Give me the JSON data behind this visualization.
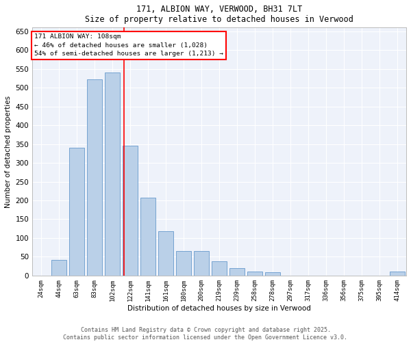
{
  "title": "171, ALBION WAY, VERWOOD, BH31 7LT",
  "subtitle": "Size of property relative to detached houses in Verwood",
  "xlabel": "Distribution of detached houses by size in Verwood",
  "ylabel": "Number of detached properties",
  "bar_labels": [
    "24sqm",
    "44sqm",
    "63sqm",
    "83sqm",
    "102sqm",
    "122sqm",
    "141sqm",
    "161sqm",
    "180sqm",
    "200sqm",
    "219sqm",
    "239sqm",
    "258sqm",
    "278sqm",
    "297sqm",
    "317sqm",
    "336sqm",
    "356sqm",
    "375sqm",
    "395sqm",
    "414sqm"
  ],
  "bar_values": [
    0,
    42,
    340,
    522,
    540,
    345,
    207,
    119,
    66,
    65,
    38,
    20,
    10,
    8,
    0,
    0,
    0,
    0,
    0,
    0,
    10
  ],
  "bar_color": "#bad0e8",
  "bar_edgecolor": "#6699cc",
  "ylim": [
    0,
    660
  ],
  "yticks": [
    0,
    50,
    100,
    150,
    200,
    250,
    300,
    350,
    400,
    450,
    500,
    550,
    600,
    650
  ],
  "vline_x": 4.65,
  "vline_color": "red",
  "annotation_text": "171 ALBION WAY: 108sqm\n← 46% of detached houses are smaller (1,028)\n54% of semi-detached houses are larger (1,213) →",
  "footer": "Contains HM Land Registry data © Crown copyright and database right 2025.\nContains public sector information licensed under the Open Government Licence v3.0.",
  "background_color": "#eef2fa"
}
